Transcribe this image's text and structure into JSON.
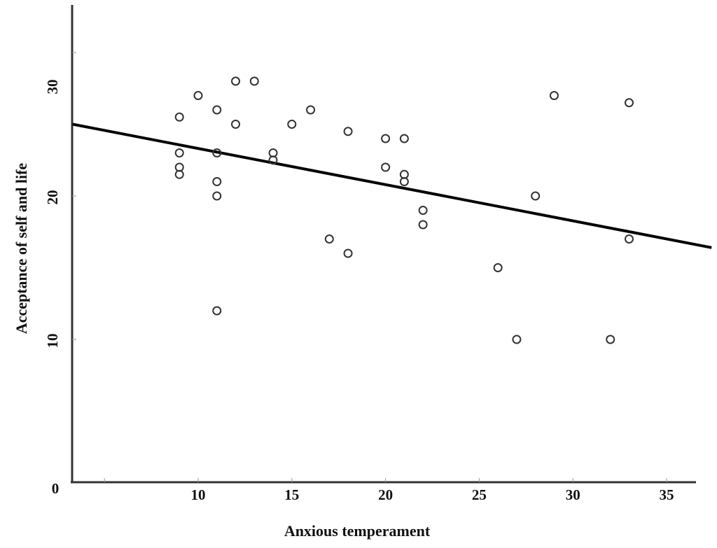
{
  "chart_data": {
    "type": "scatter",
    "title": "",
    "xlabel": "Anxious temperament",
    "ylabel": "Acceptance of self and life",
    "xlim": [
      3.3,
      37.4
    ],
    "ylim": [
      0,
      33.5
    ],
    "x_ticks": [
      5,
      10,
      15,
      20,
      25,
      30,
      35
    ],
    "x_tick_labels": [
      "",
      "10",
      "15",
      "20",
      "25",
      "30",
      "35"
    ],
    "y_ticks": [
      0,
      10,
      20,
      30
    ],
    "y_tick_labels": [
      "0",
      "10",
      "20",
      "30"
    ],
    "grid": false,
    "legend": null,
    "marker": "open-circle",
    "series": [
      {
        "name": "observations",
        "points": [
          [
            9,
            25.5
          ],
          [
            9,
            23.0
          ],
          [
            9,
            22.0
          ],
          [
            9,
            21.5
          ],
          [
            10,
            27.0
          ],
          [
            11,
            26.0
          ],
          [
            11,
            23.0
          ],
          [
            11,
            21.0
          ],
          [
            11,
            20.0
          ],
          [
            11,
            12.0
          ],
          [
            12,
            28.0
          ],
          [
            12,
            25.0
          ],
          [
            13,
            28.0
          ],
          [
            14,
            23.0
          ],
          [
            14,
            22.5
          ],
          [
            15,
            25.0
          ],
          [
            16,
            26.0
          ],
          [
            17,
            17.0
          ],
          [
            18,
            24.5
          ],
          [
            18,
            16.0
          ],
          [
            20,
            24.0
          ],
          [
            20,
            22.0
          ],
          [
            21,
            24.0
          ],
          [
            21,
            21.5
          ],
          [
            21,
            21.0
          ],
          [
            22,
            19.0
          ],
          [
            22,
            18.0
          ],
          [
            26,
            15.0
          ],
          [
            27,
            10.0
          ],
          [
            28,
            20.0
          ],
          [
            29,
            27.0
          ],
          [
            32,
            10.0
          ],
          [
            33,
            26.5
          ],
          [
            33,
            17.0
          ]
        ]
      }
    ],
    "regression_line": {
      "from": [
        3.3,
        25.0
      ],
      "to": [
        37.4,
        16.4
      ],
      "slope": -0.252,
      "intercept": 25.8
    }
  },
  "labels": {
    "x_axis_title": "Anxious temperament",
    "y_axis_title": "Acceptance of self and life"
  },
  "colors": {
    "axis": "#333333",
    "line": "#000000",
    "marker_stroke": "#333333",
    "text": "#111111"
  }
}
